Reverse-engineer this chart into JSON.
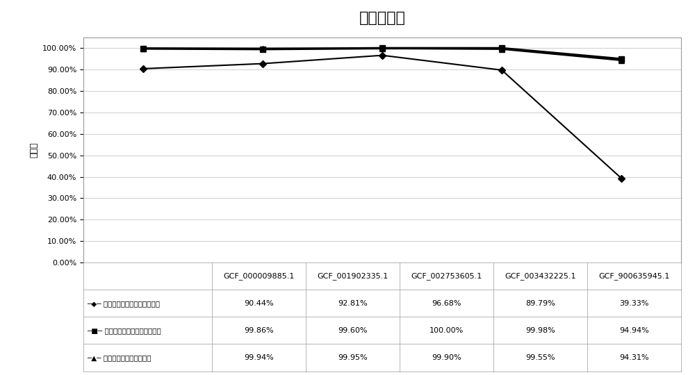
{
  "title": "比对准确率",
  "ylabel": "准确率",
  "x_labels": [
    "GCF_000009885.1",
    "GCF_001902335.1",
    "GCF_002753605.1",
    "GCF_003432225.1",
    "GCF_900635945.1"
  ],
  "series": [
    {
      "name": "肺炎克雷伯菌参考菌株基因组",
      "values": [
        90.44,
        92.81,
        96.68,
        89.79,
        39.33
      ],
      "color": "#000000",
      "marker": "D",
      "linestyle": "-",
      "linewidth": 1.5,
      "markersize": 5
    },
    {
      "name": "肺炎克雷伯菌所有菌株基因组",
      "values": [
        99.86,
        99.6,
        100.0,
        99.98,
        94.94
      ],
      "color": "#000000",
      "marker": "s",
      "linestyle": "-",
      "linewidth": 2.5,
      "markersize": 6
    },
    {
      "name": "肺炎克雷伯菌融合基因组",
      "values": [
        99.94,
        99.95,
        99.9,
        99.55,
        94.31
      ],
      "color": "#000000",
      "marker": "^",
      "linestyle": "-",
      "linewidth": 1.5,
      "markersize": 6
    }
  ],
  "table_header": [
    "GCF_000009885.1",
    "GCF_001902335.1",
    "GCF_002753605.1",
    "GCF_003432225.1",
    "GCF_900635945.1"
  ],
  "table_rows": [
    [
      "肺炎克雷伯菌参考菌株基因组",
      "90.44%",
      "92.81%",
      "96.68%",
      "89.79%",
      "39.33%"
    ],
    [
      "肺炎克雷伯菌所有菌株基因组",
      "99.86%",
      "99.60%",
      "100.00%",
      "99.98%",
      "94.94%"
    ],
    [
      "肺炎克雷伯菌融合基因组",
      "99.94%",
      "99.95%",
      "99.90%",
      "99.55%",
      "94.31%"
    ]
  ],
  "ylim": [
    0,
    105
  ],
  "yticks": [
    0,
    10,
    20,
    30,
    40,
    50,
    60,
    70,
    80,
    90,
    100
  ],
  "ytick_labels": [
    "0.00%",
    "10.00%",
    "20.00%",
    "30.00%",
    "40.00%",
    "50.00%",
    "60.00%",
    "70.00%",
    "80.00%",
    "90.00%",
    "100.00%"
  ],
  "background_color": "#ffffff",
  "grid_color": "#c8c8c8",
  "title_fontsize": 16,
  "axis_label_fontsize": 9,
  "tick_fontsize": 8,
  "table_fontsize": 8,
  "header_fontsize": 8
}
